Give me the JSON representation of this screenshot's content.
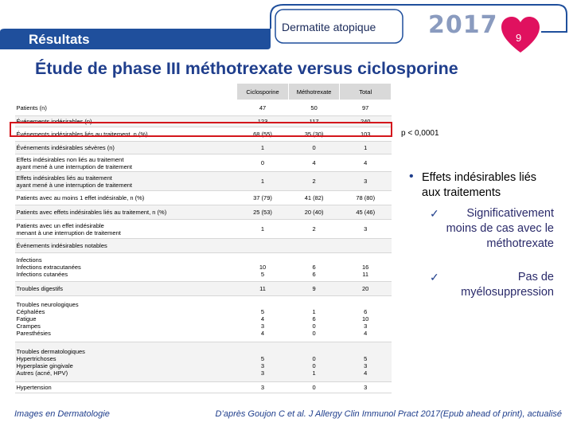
{
  "header": {
    "section": "Résultats",
    "topic": "Dermatite atopique",
    "year": "2017",
    "page_number": "9",
    "colors": {
      "band": "#1f4f9c",
      "heart": "#e0115f",
      "title": "#1f3e8c"
    }
  },
  "title": "Étude de phase III méthotrexate versus ciclosporine",
  "table": {
    "columns": [
      "Ciclosporine",
      "Méthotrexate",
      "Total"
    ],
    "rows": [
      {
        "label": "Patients (n)",
        "c1": "47",
        "c2": "50",
        "c3": "97"
      },
      {
        "label": "Événements indésirables (n)",
        "c1": "123",
        "c2": "117",
        "c3": "240"
      },
      {
        "label": "Événements indésirables liés au traitement, n (%)",
        "c1": "68 (55)",
        "c2": "35 (30)",
        "c3": "103"
      },
      {
        "label": "Événements indésirables sévères (n)",
        "c1": "1",
        "c2": "0",
        "c3": "1"
      },
      {
        "label": "Effets indésirables non liés au traitement\nayant mené à une interruption de traitement",
        "c1": "0",
        "c2": "4",
        "c3": "4"
      },
      {
        "label": "Effets indésirables liés au traitement\nayant mené à une interruption de traitement",
        "c1": "1",
        "c2": "2",
        "c3": "3"
      },
      {
        "label": "Patients avec au moins 1 effet indésirable, n (%)",
        "c1": "37 (79)",
        "c2": "41 (82)",
        "c3": "78 (80)"
      },
      {
        "label": "Patients avec effets indésirables liés au traitement, n (%)",
        "c1": "25 (53)",
        "c2": "20 (40)",
        "c3": "45 (46)"
      },
      {
        "label": "Patients avec un effet indésirable\nmenant à une interruption de traitement",
        "c1": "1",
        "c2": "2",
        "c3": "3"
      },
      {
        "label": "Événements indésirables notables",
        "c1": "",
        "c2": "",
        "c3": ""
      },
      {
        "label": "Infections\nInfections extracutanées\nInfections cutanées",
        "c1": "\n10\n5",
        "c2": "\n6\n6",
        "c3": "\n16\n11"
      },
      {
        "label": "Troubles digestifs",
        "c1": "11",
        "c2": "9",
        "c3": "20"
      },
      {
        "label": "Troubles neurologiques\nCéphalées\nFatigue\nCrampes\nParesthésies",
        "c1": "\n5\n4\n3\n4",
        "c2": "\n1\n6\n0\n0",
        "c3": "\n6\n10\n3\n4"
      },
      {
        "label": "Troubles dermatologiques\nHypertrichoses\nHyperplasie gingivale\nAutres (acné, HPV)",
        "c1": "\n5\n3\n3",
        "c2": "\n0\n0\n1",
        "c3": "\n5\n3\n4"
      },
      {
        "label": "Hypertension",
        "c1": "3",
        "c2": "0",
        "c3": "3"
      }
    ]
  },
  "p_value": "p < 0,0001",
  "bullet": {
    "text": "Effets indésirables liés aux traitements",
    "sub1": "Significativement moins de cas avec le méthotrexate",
    "sub2": "Pas de myélosuppression"
  },
  "footer": {
    "left": "Images en Dermatologie",
    "right": "D’après Goujon C et al. J Allergy Clin Immunol Pract 2017(Epub ahead of print), actualisé"
  }
}
